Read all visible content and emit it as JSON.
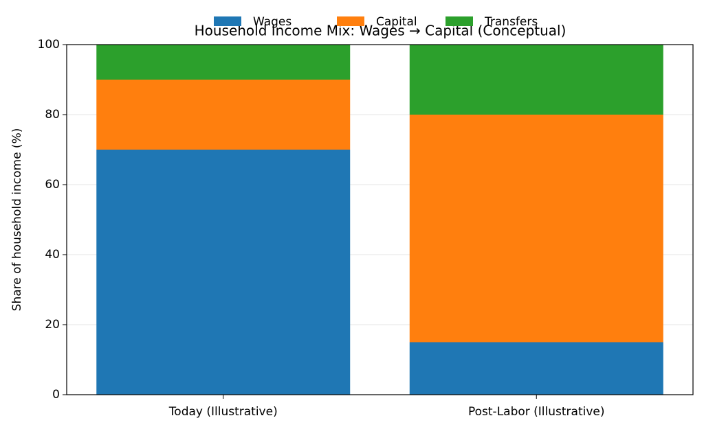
{
  "chart_data": {
    "type": "stacked_bar",
    "title": "Household Income Mix: Wages → Capital (Conceptual)",
    "y_label": "Share of household income (%)",
    "categories": [
      "Today (Illustrative)",
      "Post-Labor (Illustrative)"
    ],
    "series": [
      {
        "name": "Wages",
        "color": "#1f77b4",
        "values": [
          70,
          15
        ]
      },
      {
        "name": "Capital",
        "color": "#ff7f0e",
        "values": [
          20,
          65
        ]
      },
      {
        "name": "Transfers",
        "color": "#2ca02c",
        "values": [
          10,
          20
        ]
      }
    ],
    "ylim": [
      0,
      100
    ],
    "yticks": [
      0,
      20,
      40,
      60,
      80,
      100
    ],
    "grid": true,
    "legend": "top"
  }
}
